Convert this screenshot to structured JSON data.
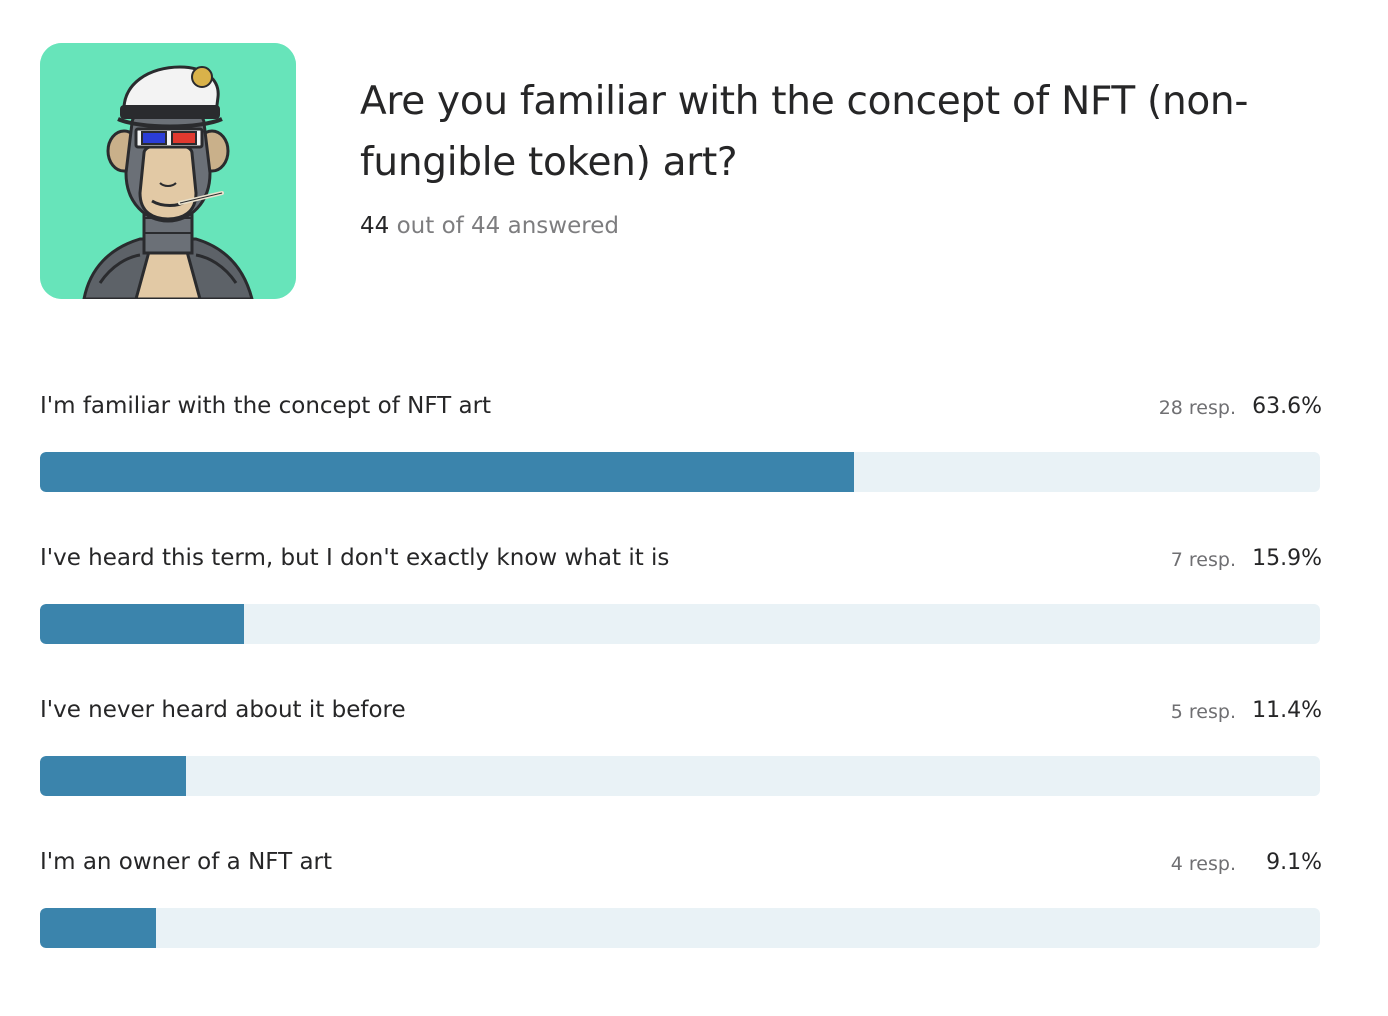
{
  "question": {
    "title": "Are you familiar with the concept of NFT (non-fungible token) art?",
    "answered_count": "44",
    "answered_rest": " out of 44 answered",
    "image_icon": "ape-avatar-image"
  },
  "colors": {
    "image_background": "#67e4ba",
    "bar_fill": "#3b84ac",
    "bar_track": "#e9f2f6"
  },
  "options": [
    {
      "label": "I'm familiar with the concept of NFT art",
      "responses": "28 resp.",
      "percent_text": "63.6%",
      "percent": 63.6
    },
    {
      "label": "I've heard this term, but I don't exactly know what it is",
      "responses": "7 resp.",
      "percent_text": "15.9%",
      "percent": 15.9
    },
    {
      "label": "I've never heard about it before",
      "responses": "5 resp.",
      "percent_text": "11.4%",
      "percent": 11.4
    },
    {
      "label": "I'm an owner of a NFT art",
      "responses": "4 resp.",
      "percent_text": "9.1%",
      "percent": 9.1
    }
  ]
}
